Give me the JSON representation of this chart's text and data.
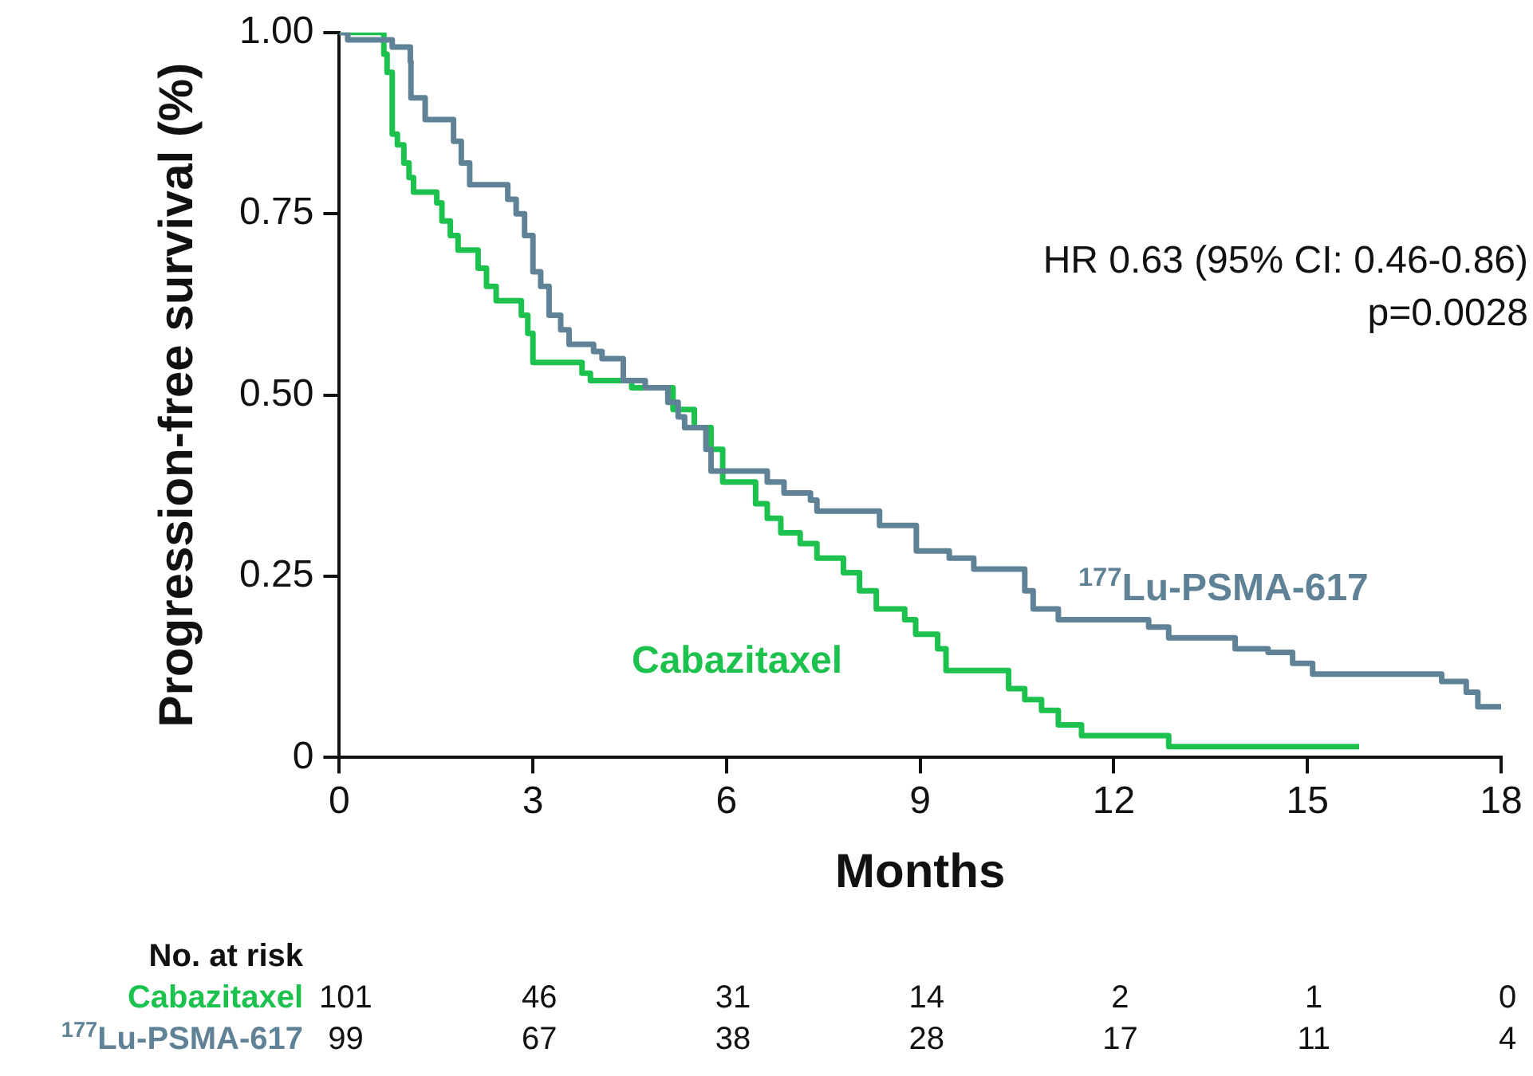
{
  "chart_data": {
    "type": "step",
    "xlabel": "Months",
    "ylabel": "Progression-free survival (%)",
    "xlim": [
      0,
      18
    ],
    "xticks": [
      0,
      3,
      6,
      9,
      12,
      15,
      18
    ],
    "ylim": [
      0,
      1
    ],
    "yticks": [
      {
        "value": 1,
        "label": "1.00"
      },
      {
        "value": 0.75,
        "label": "0.75"
      },
      {
        "value": 0.5,
        "label": "0.50"
      },
      {
        "value": 0.25,
        "label": "0.25"
      },
      0
    ],
    "grid": false,
    "marker": "none",
    "line_style": "solid",
    "series": [
      {
        "name": "$^{177}$Lu-PSMA-617",
        "color": "#5f8296",
        "x": [
          0,
          0.13,
          0.82,
          1.1,
          1.11,
          1.33,
          1.77,
          1.89,
          2.02,
          2.61,
          2.74,
          2.87,
          3,
          3.12,
          3.25,
          3.43,
          3.56,
          3.94,
          4.07,
          4.4,
          4.74,
          5.09,
          5.25,
          5.35,
          5.68,
          5.76,
          6.63,
          6.89,
          7.3,
          7.4,
          8.37,
          8.94,
          9.45,
          9.83,
          10.62,
          10.75,
          11.14,
          12.54,
          12.85,
          13.88,
          14.39,
          14.77,
          15.08,
          17.08,
          17.46,
          17.64,
          18
        ],
        "values": [
          1,
          0.99,
          0.98,
          0.96,
          0.91,
          0.88,
          0.85,
          0.82,
          0.79,
          0.77,
          0.75,
          0.72,
          0.67,
          0.65,
          0.61,
          0.59,
          0.57,
          0.56,
          0.55,
          0.52,
          0.51,
          0.49,
          0.47,
          0.455,
          0.425,
          0.395,
          0.38,
          0.365,
          0.355,
          0.34,
          0.32,
          0.285,
          0.275,
          0.26,
          0.23,
          0.205,
          0.19,
          0.18,
          0.165,
          0.15,
          0.145,
          0.13,
          0.115,
          0.105,
          0.09,
          0.07,
          0.07
        ]
      },
      {
        "name": "Cabazitaxel",
        "color": "#1dc24e",
        "x": [
          0,
          0.69,
          0.74,
          0.82,
          0.9,
          1,
          1.08,
          1.15,
          1.51,
          1.59,
          1.72,
          1.84,
          2.15,
          2.28,
          2.43,
          2.82,
          2.92,
          3,
          3.76,
          3.89,
          4.53,
          5.17,
          5.5,
          5.76,
          5.94,
          6.45,
          6.63,
          6.84,
          7.14,
          7.4,
          7.81,
          8.06,
          8.32,
          8.76,
          8.93,
          9.27,
          9.4,
          10.37,
          10.62,
          10.88,
          11.14,
          11.5,
          12.85,
          15.8
        ],
        "values": [
          1,
          0.97,
          0.945,
          0.86,
          0.845,
          0.82,
          0.8,
          0.78,
          0.765,
          0.74,
          0.72,
          0.7,
          0.675,
          0.65,
          0.63,
          0.61,
          0.585,
          0.545,
          0.53,
          0.52,
          0.51,
          0.48,
          0.455,
          0.425,
          0.38,
          0.35,
          0.33,
          0.31,
          0.295,
          0.275,
          0.255,
          0.23,
          0.205,
          0.19,
          0.17,
          0.15,
          0.12,
          0.095,
          0.08,
          0.065,
          0.045,
          0.03,
          0.015,
          0.015
        ]
      }
    ],
    "annotations": [
      "HR 0.63 (95% CI: 0.46-0.86)",
      "p=0.0028",
      "No. at risk",
      "101",
      "46",
      "31",
      "14",
      "2",
      "1",
      "0",
      "99",
      "67",
      "38",
      "28",
      "17",
      "11",
      "4"
    ]
  }
}
